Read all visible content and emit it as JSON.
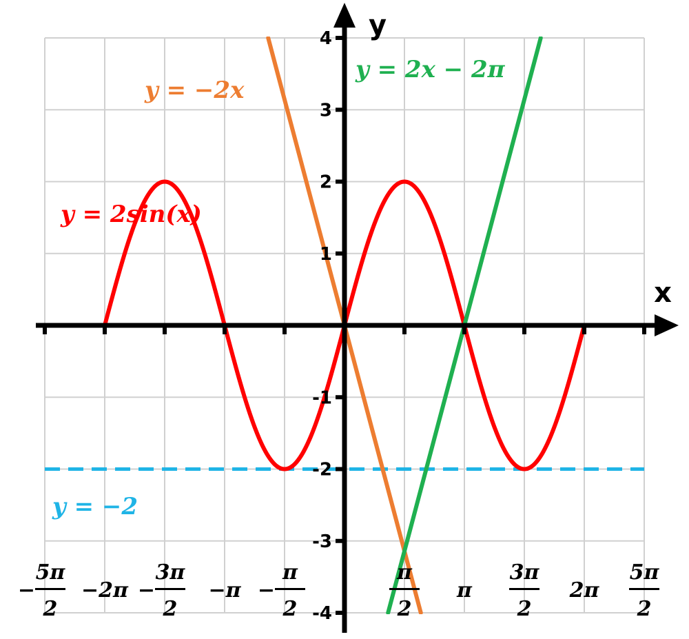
{
  "chart_data": {
    "type": "line",
    "title": "",
    "xlabel": "x",
    "ylabel": "y",
    "xlim": [
      -7.854,
      7.854
    ],
    "ylim": [
      -4,
      4
    ],
    "grid": true,
    "x_ticks": [
      {
        "value": -7.854,
        "num": "5π",
        "den": "2",
        "sign": "−"
      },
      {
        "value": -6.2832,
        "text": "−2π"
      },
      {
        "value": -4.7124,
        "num": "3π",
        "den": "2",
        "sign": "−"
      },
      {
        "value": -3.1416,
        "text": "−π"
      },
      {
        "value": -1.5708,
        "num": "π",
        "den": "2",
        "sign": "−"
      },
      {
        "value": 1.5708,
        "num": "π",
        "den": "2",
        "sign": ""
      },
      {
        "value": 3.1416,
        "text": "π"
      },
      {
        "value": 4.7124,
        "num": "3π",
        "den": "2",
        "sign": ""
      },
      {
        "value": 6.2832,
        "text": "2π"
      },
      {
        "value": 7.854,
        "num": "5π",
        "den": "2",
        "sign": ""
      }
    ],
    "y_ticks": [
      {
        "value": 4,
        "text": "4"
      },
      {
        "value": 3,
        "text": "3"
      },
      {
        "value": 2,
        "text": "2"
      },
      {
        "value": 1,
        "text": "1"
      },
      {
        "value": -1,
        "text": "-1"
      },
      {
        "value": -2,
        "text": "-2"
      },
      {
        "value": -3,
        "text": "-3"
      },
      {
        "value": -4,
        "text": "-4"
      }
    ],
    "series": [
      {
        "name": "y = 2sin(x)",
        "color": "#ff0000",
        "function": "2*sin(x)",
        "x_range": [
          -6.2832,
          6.2832
        ],
        "style": "solid"
      },
      {
        "name": "y = −2x",
        "color": "#ed7d31",
        "function": "-2*x",
        "x_range": [
          -2.0,
          2.0
        ],
        "style": "solid"
      },
      {
        "name": "y = 2x − 2π",
        "color": "#1fb050",
        "function": "2*x - 2*pi",
        "x_range": [
          1.1416,
          5.1416
        ],
        "style": "solid"
      },
      {
        "name": "y = −2",
        "color": "#1fb4e6",
        "function": "-2",
        "x_range": [
          -7.854,
          7.854
        ],
        "style": "dashed"
      }
    ]
  },
  "labels": {
    "x_axis": "x",
    "y_axis": "y",
    "eq_neg2x": "y = −2x",
    "eq_green": "y = 2x − 2π",
    "eq_sin": "y = 2sin(x)",
    "eq_dash": "y = −2"
  },
  "colors": {
    "grid": "#d0d0d0",
    "axis": "#000000",
    "sin": "#ff0000",
    "orange": "#ed7d31",
    "green": "#1fb050",
    "blue": "#1fb4e6"
  }
}
